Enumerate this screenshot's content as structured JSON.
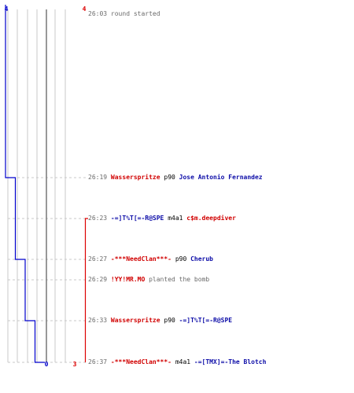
{
  "colors": {
    "team_blue": "#0000cc",
    "team_red": "#dd0000",
    "grid": "#c8c8c8",
    "center_axis": "#777777",
    "text_gray": "#6a6a6a",
    "text_black": "#000000"
  },
  "scores": {
    "blue_top": "4",
    "red_top": "4",
    "blue_bottom": "0",
    "red_bottom": "3"
  },
  "chart_data": {
    "type": "line",
    "x_unit": "alive players",
    "y_unit": "round time",
    "series": [
      {
        "team": "blue",
        "steps": [
          {
            "time": "26:03",
            "alive": 4
          },
          {
            "time": "26:19",
            "alive": 3
          },
          {
            "time": "26:27",
            "alive": 2
          },
          {
            "time": "26:33",
            "alive": 1
          },
          {
            "time": "26:37",
            "alive": 0
          }
        ]
      },
      {
        "team": "red",
        "steps": [
          {
            "time": "26:03",
            "alive": 4
          },
          {
            "time": "26:23",
            "alive": 3
          },
          {
            "time": "26:37",
            "alive": 3
          }
        ]
      }
    ]
  },
  "log": [
    {
      "time": "26:03",
      "event": "round started"
    },
    {
      "time": "26:19",
      "killer": "Wasserspritze",
      "killer_team": "red",
      "weapon": "p90",
      "victim": "Jose Antonio Fernandez",
      "victim_team": "blue"
    },
    {
      "time": "26:23",
      "killer": "-=]T%T[=-R@SPE",
      "killer_team": "blue",
      "weapon": "m4a1",
      "victim": "c$m.deepdiver",
      "victim_team": "red"
    },
    {
      "time": "26:27",
      "killer": "-***NeedClan***-",
      "killer_team": "red",
      "weapon": "p90",
      "victim": "Cherub",
      "victim_team": "blue"
    },
    {
      "time": "26:29",
      "player": "!YY!MR.MO",
      "player_team": "red",
      "event": "planted the bomb"
    },
    {
      "time": "26:33",
      "killer": "Wasserspritze",
      "killer_team": "red",
      "weapon": "p90",
      "victim": "-=]T%T[=-R@SPE",
      "victim_team": "blue"
    },
    {
      "time": "26:37",
      "killer": "-***NeedClan***-",
      "killer_team": "red",
      "weapon": "m4a1",
      "victim": "-=[TMX]=-The Blotch",
      "victim_team": "blue"
    }
  ]
}
